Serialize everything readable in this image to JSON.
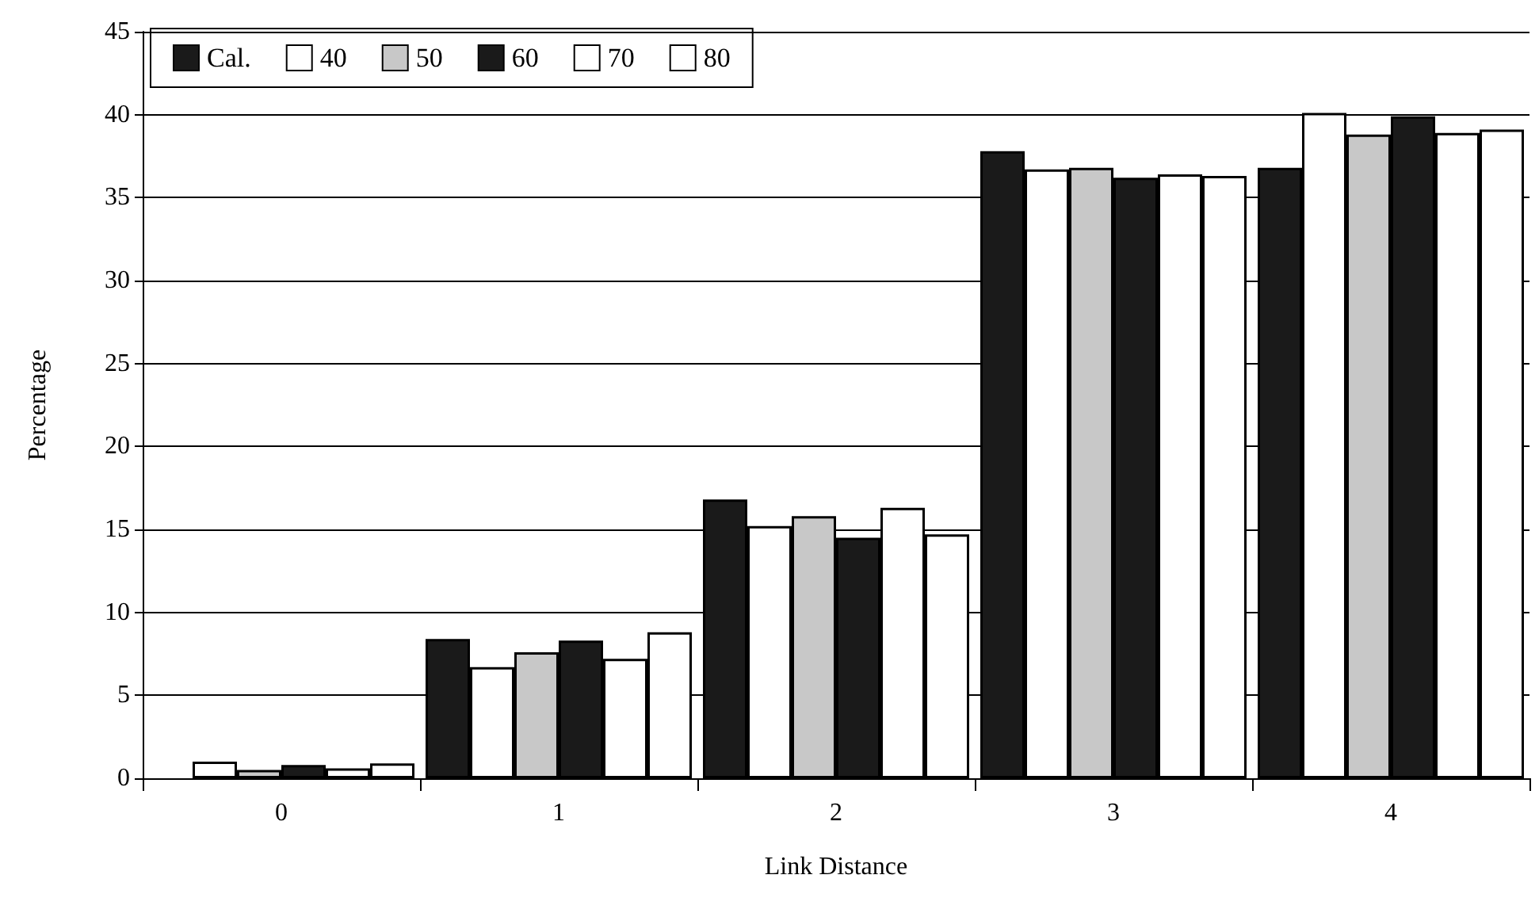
{
  "chart_data": {
    "type": "bar",
    "xlabel": "Link Distance",
    "ylabel": "Percentage",
    "categories": [
      "0",
      "1",
      "2",
      "3",
      "4"
    ],
    "series": [
      {
        "name": "Cal.",
        "color": "#1a1a1a",
        "values": [
          null,
          8.4,
          16.8,
          37.8,
          36.8
        ]
      },
      {
        "name": "40",
        "color": "#ffffff",
        "values": [
          1.0,
          6.7,
          15.2,
          36.7,
          40.1
        ]
      },
      {
        "name": "50",
        "color": "#c8c8c8",
        "values": [
          0.5,
          7.6,
          15.8,
          36.8,
          38.8
        ]
      },
      {
        "name": "60",
        "color": "#1a1a1a",
        "values": [
          0.8,
          8.3,
          14.5,
          36.2,
          39.9
        ]
      },
      {
        "name": "70",
        "color": "#ffffff",
        "values": [
          0.6,
          7.2,
          16.3,
          36.4,
          38.9
        ]
      },
      {
        "name": "80",
        "color": "#ffffff",
        "values": [
          0.9,
          8.8,
          14.7,
          36.3,
          39.1
        ]
      }
    ],
    "ylim": [
      0,
      45
    ],
    "yticks": [
      0,
      5,
      10,
      15,
      20,
      25,
      30,
      35,
      40,
      45
    ],
    "grid": "y",
    "legend": "top left"
  }
}
